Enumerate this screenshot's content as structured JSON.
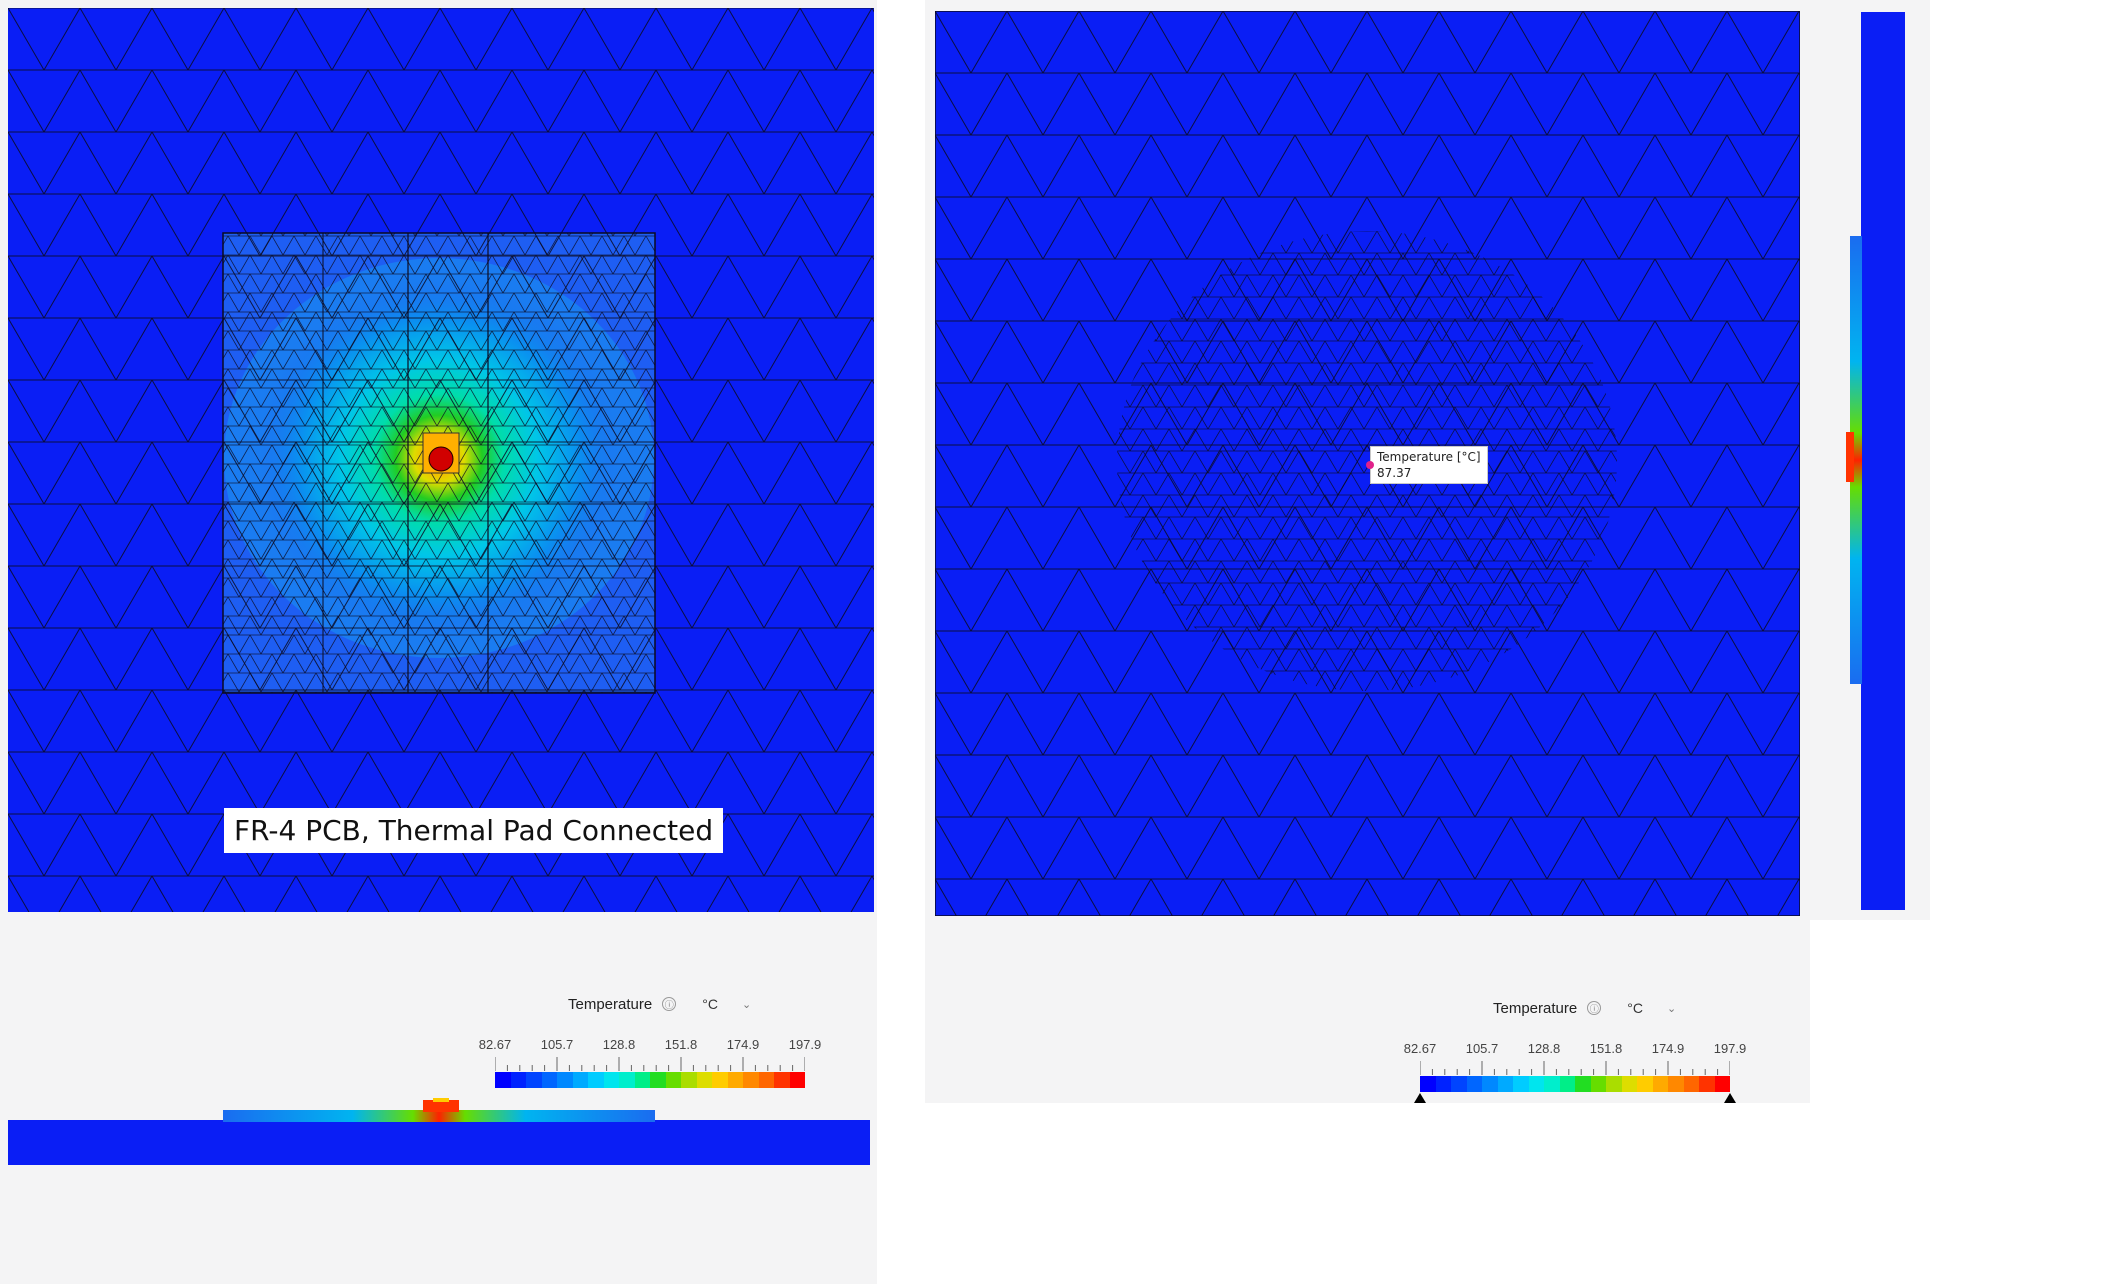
{
  "left_view": {
    "caption": "FR-4 PCB, Thermal Pad Connected"
  },
  "right_view": {
    "probe": {
      "label": "Temperature [°C]",
      "value": "87.37"
    }
  },
  "legends": [
    {
      "title": "Temperature",
      "info_icon": "info-icon",
      "unit": "°C",
      "dropdown_icon": "chevron-down-icon",
      "ticks": [
        "82.67",
        "105.7",
        "128.8",
        "151.8",
        "174.9",
        "197.9"
      ],
      "show_handles": false
    },
    {
      "title": "Temperature",
      "info_icon": "info-icon",
      "unit": "°C",
      "dropdown_icon": "chevron-down-icon",
      "ticks": [
        "82.67",
        "105.7",
        "128.8",
        "151.8",
        "174.9",
        "197.9"
      ],
      "show_handles": true
    }
  ],
  "colors": {
    "cold": "#0a1ef5",
    "scale": [
      "#0000ff",
      "#0022ff",
      "#0044ff",
      "#0066ff",
      "#0088ff",
      "#00aaff",
      "#00ccff",
      "#00e5ee",
      "#00eecc",
      "#00ee88",
      "#22dd22",
      "#66dd00",
      "#aadd00",
      "#dddd00",
      "#ffcc00",
      "#ffaa00",
      "#ff8800",
      "#ff6600",
      "#ff3300",
      "#ff0000"
    ]
  }
}
